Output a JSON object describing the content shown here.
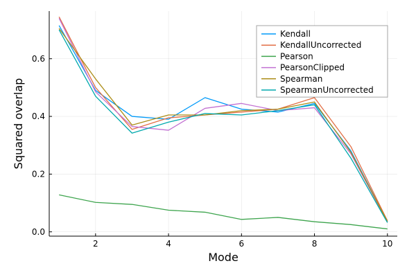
{
  "chart_data": {
    "type": "line",
    "title": "",
    "xlabel": "Mode",
    "ylabel": "Squared overlap",
    "xlim": [
      0.73,
      10.27
    ],
    "ylim": [
      -0.015,
      0.765
    ],
    "xticks": [
      2,
      4,
      6,
      8,
      10
    ],
    "yticks": [
      0.0,
      0.2,
      0.4,
      0.6
    ],
    "ytick_labels": [
      "0.0",
      "0.2",
      "0.4",
      "0.6"
    ],
    "grid": true,
    "legend_position": "top-right",
    "x": [
      1,
      2,
      3,
      4,
      5,
      6,
      7,
      8,
      9,
      10
    ],
    "series": [
      {
        "name": "Kendall",
        "color": "#009af9",
        "values": [
          0.715,
          0.49,
          0.4,
          0.39,
          0.465,
          0.425,
          0.415,
          0.445,
          0.28,
          0.035
        ]
      },
      {
        "name": "KendallUncorrected",
        "color": "#e26f46",
        "values": [
          0.745,
          0.5,
          0.355,
          0.395,
          0.405,
          0.415,
          0.425,
          0.465,
          0.295,
          0.038
        ]
      },
      {
        "name": "Pearson",
        "color": "#3da44d",
        "values": [
          0.128,
          0.102,
          0.095,
          0.075,
          0.068,
          0.043,
          0.05,
          0.035,
          0.025,
          0.01
        ]
      },
      {
        "name": "PearsonClipped",
        "color": "#c271d2",
        "values": [
          0.74,
          0.485,
          0.365,
          0.352,
          0.428,
          0.445,
          0.42,
          0.43,
          0.27,
          0.034
        ]
      },
      {
        "name": "Spearman",
        "color": "#ac8d18",
        "values": [
          0.705,
          0.53,
          0.37,
          0.405,
          0.405,
          0.42,
          0.425,
          0.45,
          0.275,
          0.036
        ]
      },
      {
        "name": "SpearmanUncorrected",
        "color": "#00a9ad",
        "values": [
          0.7,
          0.47,
          0.342,
          0.38,
          0.41,
          0.405,
          0.42,
          0.44,
          0.255,
          0.032
        ]
      }
    ]
  }
}
